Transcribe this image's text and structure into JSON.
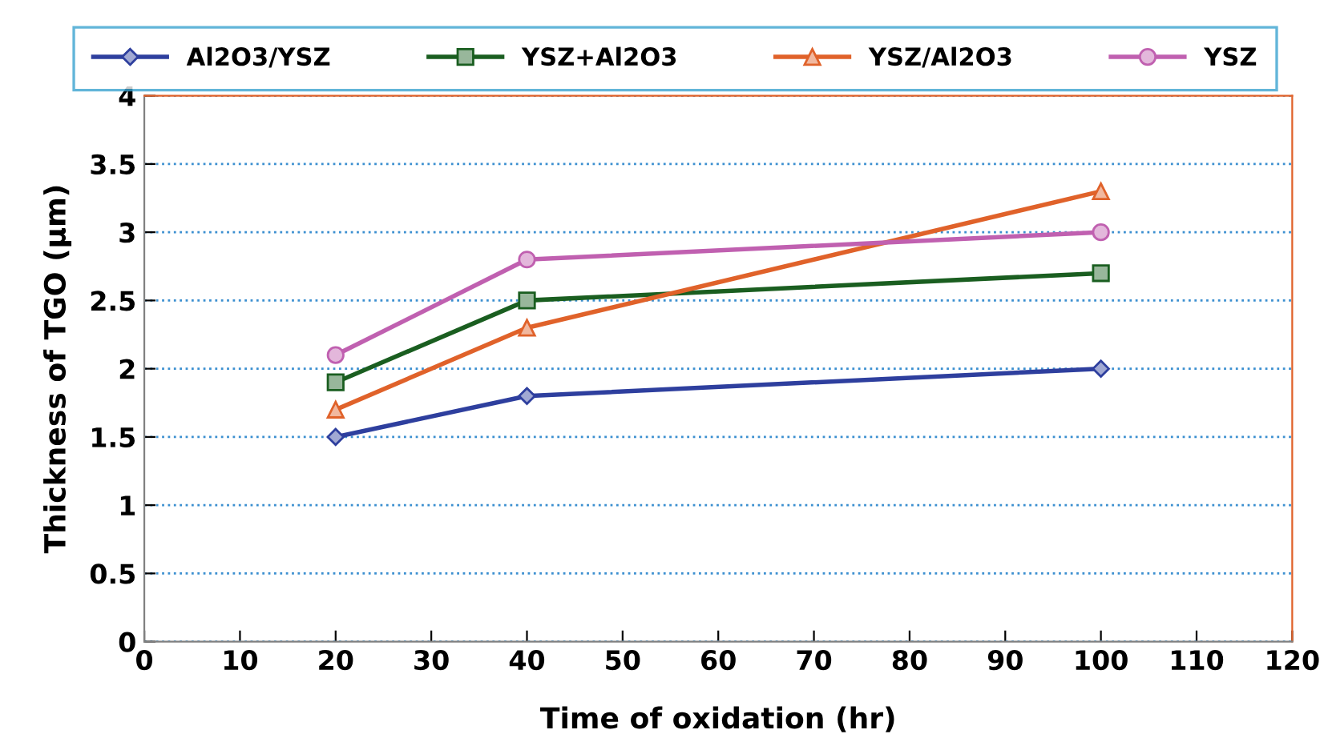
{
  "chart_data": {
    "type": "line",
    "xlabel": "Time of oxidation (hr)",
    "ylabel": "Thickness of TGO (μm)",
    "x": [
      20,
      40,
      100
    ],
    "series": [
      {
        "name": "Al2O3/YSZ",
        "color": "#2e3f9e",
        "marker": "diamond",
        "values": [
          1.5,
          1.8,
          2.0
        ]
      },
      {
        "name": "YSZ+Al2O3",
        "color": "#1a5e20",
        "marker": "square",
        "values": [
          1.9,
          2.5,
          2.7
        ]
      },
      {
        "name": "YSZ/Al2O3",
        "color": "#e0622a",
        "marker": "triangle",
        "values": [
          1.7,
          2.3,
          3.3
        ]
      },
      {
        "name": "YSZ",
        "color": "#c060b0",
        "marker": "circle",
        "values": [
          2.1,
          2.8,
          3.0
        ]
      }
    ],
    "xlim": [
      0,
      120
    ],
    "xticks": [
      0,
      10,
      20,
      30,
      40,
      50,
      60,
      70,
      80,
      90,
      100,
      110,
      120
    ],
    "ylim": [
      0,
      4
    ],
    "yticks": [
      0,
      0.5,
      1,
      1.5,
      2,
      2.5,
      3,
      3.5,
      4
    ],
    "grid": "y",
    "legend": "top",
    "line_style": "solid"
  }
}
